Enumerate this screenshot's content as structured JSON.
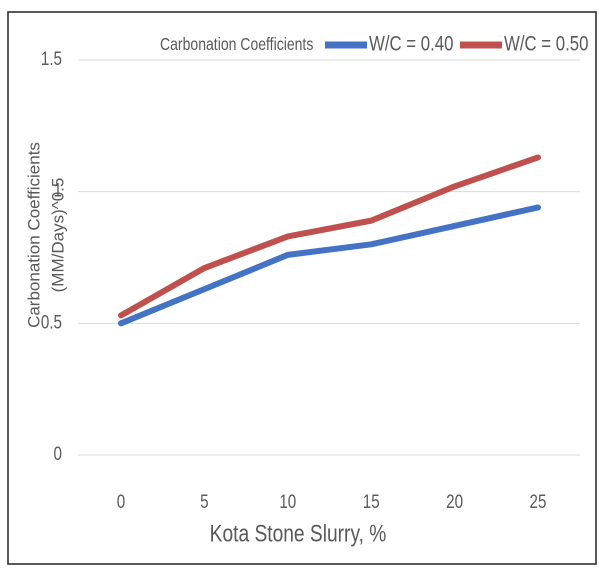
{
  "chart_data": {
    "type": "line",
    "legend_title": "Carbonation Coefficients",
    "x_label": "Kota Stone Slurry, %",
    "y_label": [
      "Carbonation Coefficients",
      "(MM/Days)^0.5"
    ],
    "categories": [
      "0",
      "5",
      "10",
      "15",
      "20",
      "25"
    ],
    "series": [
      {
        "name": "W/C = 0.40",
        "color": "#4472c4",
        "values": [
          0.5,
          0.63,
          0.76,
          0.8,
          0.87,
          0.94
        ]
      },
      {
        "name": "W/C = 0.50",
        "color": "#c0504d",
        "values": [
          0.53,
          0.71,
          0.83,
          0.89,
          1.02,
          1.13
        ]
      }
    ],
    "ylim": [
      0,
      1.5
    ],
    "yticks": [
      0,
      0.5,
      1,
      1.5
    ],
    "grid": true,
    "legend": "top"
  }
}
